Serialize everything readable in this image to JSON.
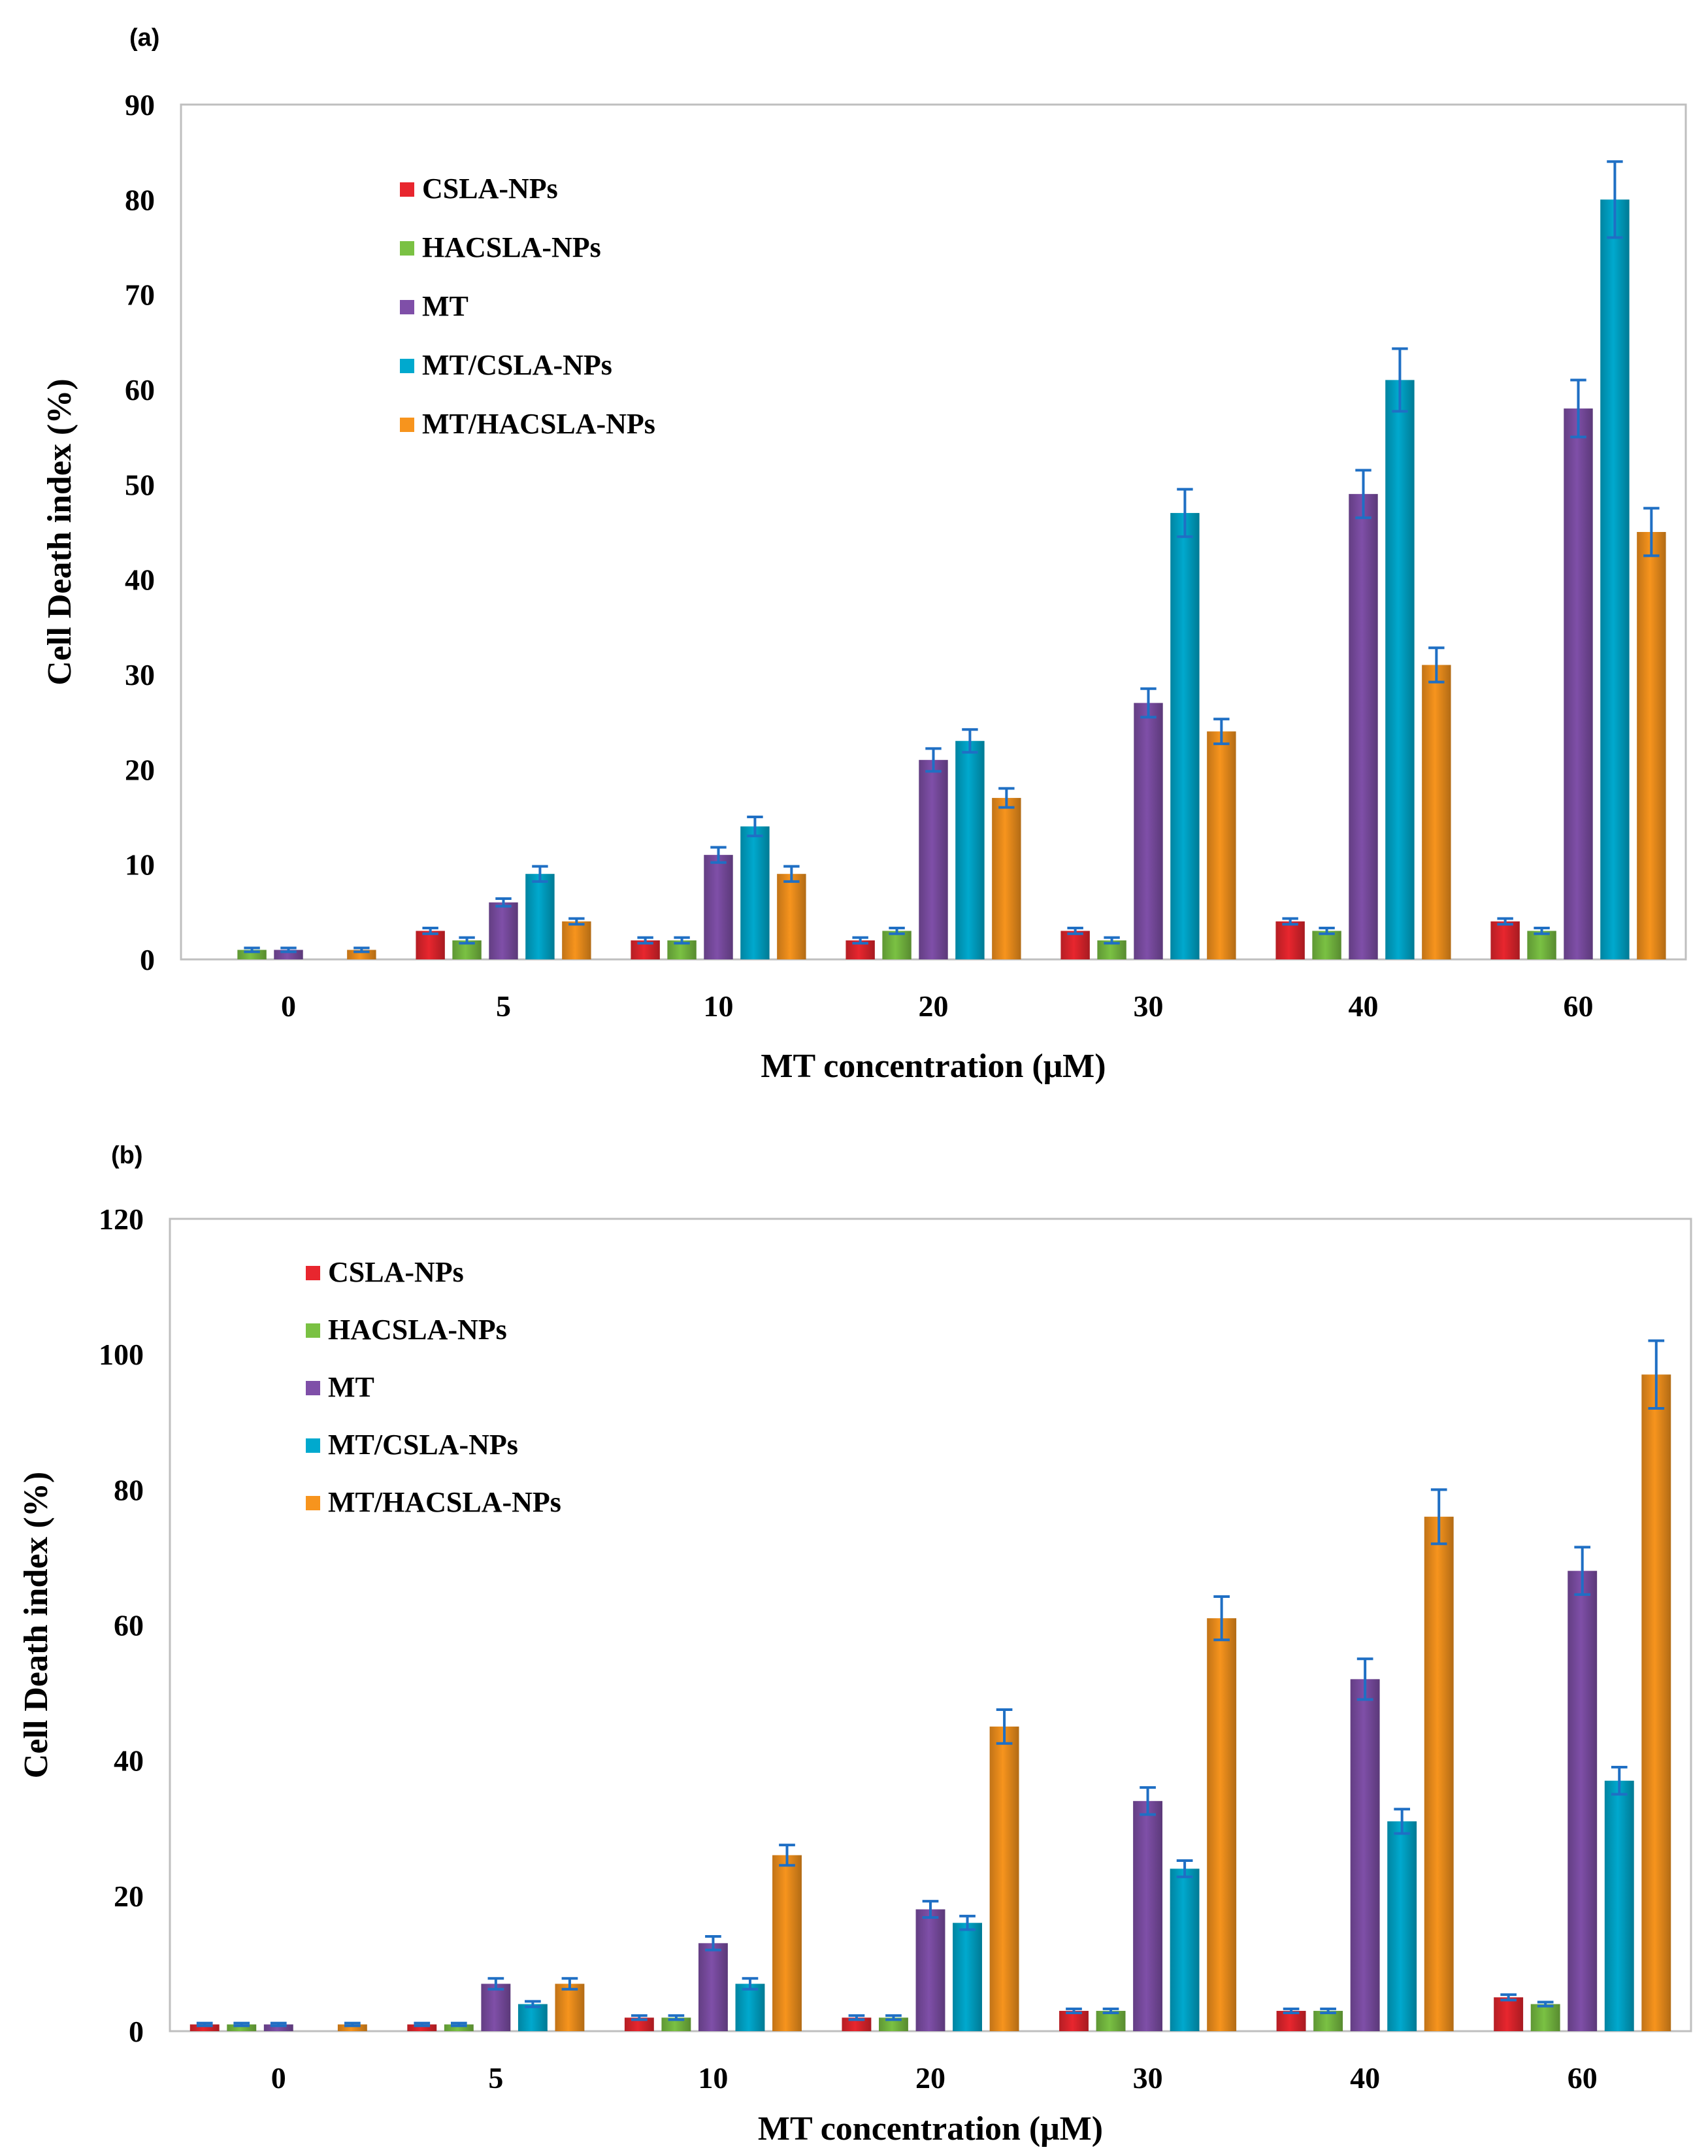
{
  "chart_data": [
    {
      "type": "bar",
      "panel_label": "(a)",
      "xlabel": "MT  concentration  (μM)",
      "ylabel": "Cell Death  index (%)",
      "ylim": [
        0,
        90
      ],
      "yticks": [
        0,
        10,
        20,
        30,
        40,
        50,
        60,
        70,
        80,
        90
      ],
      "ytick_labels": [
        "0",
        "10",
        "20",
        "30",
        "40",
        "50",
        "60",
        "70",
        "80",
        "90"
      ],
      "categories": [
        "0",
        "5",
        "10",
        "20",
        "30",
        "40",
        "60"
      ],
      "legend_position": "top-left",
      "series": [
        {
          "name": "CSLA-NPs",
          "color": "#E8262E",
          "values": [
            0,
            3,
            2,
            2,
            3,
            4,
            4
          ],
          "errors": [
            0,
            0.3,
            0.3,
            0.3,
            0.3,
            0.3,
            0.3
          ]
        },
        {
          "name": "HACSLA-NPs",
          "color": "#7AC143",
          "values": [
            1,
            2,
            2,
            3,
            2,
            3,
            3
          ],
          "errors": [
            0.2,
            0.3,
            0.3,
            0.3,
            0.3,
            0.3,
            0.3
          ]
        },
        {
          "name": "MT",
          "color": "#7F4FA8",
          "values": [
            1,
            6,
            11,
            21,
            27,
            49,
            58
          ],
          "errors": [
            0.2,
            0.4,
            0.8,
            1.2,
            1.5,
            2.5,
            3
          ]
        },
        {
          "name": "MT/CSLA-NPs",
          "color": "#00A9CE",
          "values": [
            0,
            9,
            14,
            23,
            47,
            61,
            80
          ],
          "errors": [
            0,
            0.8,
            1,
            1.2,
            2.5,
            3.3,
            4
          ]
        },
        {
          "name": "MT/HACSLA-NPs",
          "color": "#F7941D",
          "values": [
            1,
            4,
            9,
            17,
            24,
            31,
            45
          ],
          "errors": [
            0.2,
            0.3,
            0.8,
            1,
            1.3,
            1.8,
            2.5
          ]
        }
      ]
    },
    {
      "type": "bar",
      "panel_label": "(b)",
      "xlabel": "MT  concentration  (μM)",
      "ylabel": "Cell Death  index (%)",
      "ylim": [
        0,
        120
      ],
      "yticks": [
        0,
        20,
        40,
        60,
        80,
        100,
        120
      ],
      "ytick_labels": [
        "0",
        "20",
        "40",
        "60",
        "80",
        "100",
        "120"
      ],
      "categories": [
        "0",
        "5",
        "10",
        "20",
        "30",
        "40",
        "60"
      ],
      "legend_position": "top-left",
      "series": [
        {
          "name": "CSLA-NPs",
          "color": "#E8262E",
          "values": [
            1,
            1,
            2,
            2,
            3,
            3,
            5
          ],
          "errors": [
            0.2,
            0.2,
            0.3,
            0.3,
            0.3,
            0.3,
            0.4
          ]
        },
        {
          "name": "HACSLA-NPs",
          "color": "#7AC143",
          "values": [
            1,
            1,
            2,
            2,
            3,
            3,
            4
          ],
          "errors": [
            0.2,
            0.2,
            0.3,
            0.3,
            0.3,
            0.3,
            0.3
          ]
        },
        {
          "name": "MT",
          "color": "#7F4FA8",
          "values": [
            1,
            7,
            13,
            18,
            34,
            52,
            68
          ],
          "errors": [
            0.2,
            0.8,
            1,
            1.2,
            2,
            3,
            3.5
          ]
        },
        {
          "name": "MT/CSLA-NPs",
          "color": "#00A9CE",
          "values": [
            0,
            4,
            7,
            16,
            24,
            31,
            37
          ],
          "errors": [
            0,
            0.4,
            0.8,
            1,
            1.2,
            1.8,
            2
          ]
        },
        {
          "name": "MT/HACSLA-NPs",
          "color": "#F7941D",
          "values": [
            1,
            7,
            26,
            45,
            61,
            76,
            97
          ],
          "errors": [
            0.2,
            0.8,
            1.5,
            2.5,
            3.2,
            4,
            5
          ]
        }
      ]
    }
  ]
}
